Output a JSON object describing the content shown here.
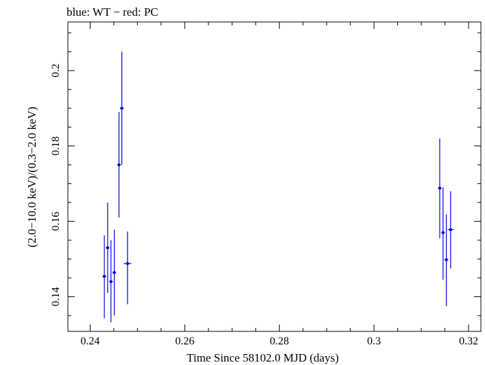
{
  "chart_data": {
    "type": "scatter",
    "title": "blue: WT − red: PC",
    "xlabel": "Time Since 58102.0 MJD (days)",
    "ylabel": "(2.0−10.0 keV)/(0.3−2.0 keV)",
    "xlim": [
      0.2353,
      0.3226
    ],
    "ylim": [
      0.1308,
      0.2129
    ],
    "x_ticks": [
      0.24,
      0.26,
      0.28,
      0.3,
      0.32
    ],
    "x_tick_labels": [
      "0.24",
      "0.26",
      "0.28",
      "0.3",
      "0.32"
    ],
    "y_ticks": [
      0.14,
      0.16,
      0.18,
      0.2
    ],
    "y_tick_labels": [
      "0.14",
      "0.16",
      "0.18",
      "0.2"
    ],
    "grid": false,
    "series": [
      {
        "name": "WT",
        "color": "#0000dd",
        "points": [
          {
            "x": 0.243,
            "y": 0.1454,
            "xerr": 0.0004,
            "ylo": 0.1343,
            "yhi": 0.1563
          },
          {
            "x": 0.2437,
            "y": 0.153,
            "xerr": 0.0004,
            "ylo": 0.141,
            "yhi": 0.165
          },
          {
            "x": 0.2444,
            "y": 0.144,
            "xerr": 0.0004,
            "ylo": 0.1332,
            "yhi": 0.155
          },
          {
            "x": 0.2451,
            "y": 0.1464,
            "xerr": 0.0004,
            "ylo": 0.135,
            "yhi": 0.1578
          },
          {
            "x": 0.2461,
            "y": 0.175,
            "xerr": 0.0004,
            "ylo": 0.161,
            "yhi": 0.189
          },
          {
            "x": 0.2467,
            "y": 0.19,
            "xerr": 0.0004,
            "ylo": 0.175,
            "yhi": 0.205
          },
          {
            "x": 0.2479,
            "y": 0.1488,
            "xerr": 0.0008,
            "ylo": 0.138,
            "yhi": 0.1573
          },
          {
            "x": 0.3139,
            "y": 0.1688,
            "xerr": 0.0004,
            "ylo": 0.1555,
            "yhi": 0.182
          },
          {
            "x": 0.3146,
            "y": 0.157,
            "xerr": 0.0004,
            "ylo": 0.1445,
            "yhi": 0.169
          },
          {
            "x": 0.3153,
            "y": 0.1498,
            "xerr": 0.0004,
            "ylo": 0.1375,
            "yhi": 0.1618
          },
          {
            "x": 0.3162,
            "y": 0.1578,
            "xerr": 0.0006,
            "ylo": 0.1475,
            "yhi": 0.168
          }
        ]
      }
    ]
  }
}
